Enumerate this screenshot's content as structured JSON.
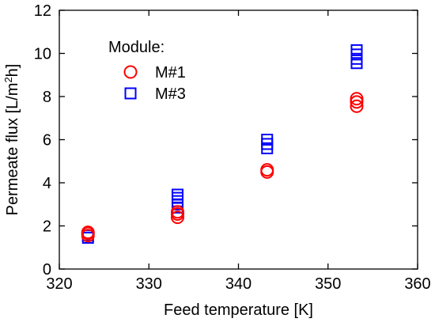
{
  "chart_data": {
    "type": "scatter",
    "xlabel": "Feed temperature [K]",
    "ylabel_main": "Permeate flux [L/m",
    "ylabel_sup": "2",
    "ylabel_end": "h]",
    "xlim": [
      320,
      360
    ],
    "ylim": [
      0,
      12
    ],
    "xticks": [
      320,
      330,
      340,
      350,
      360
    ],
    "yticks": [
      0,
      2,
      4,
      6,
      8,
      10,
      12
    ],
    "grid": false,
    "legend": {
      "title": "Module:",
      "placement": "top-left"
    },
    "series": [
      {
        "name": "M#1",
        "marker": "circle",
        "color": "#ff0000",
        "points": [
          {
            "x": 323.2,
            "y": 1.55
          },
          {
            "x": 323.2,
            "y": 1.65
          },
          {
            "x": 323.2,
            "y": 1.7
          },
          {
            "x": 333.2,
            "y": 2.4
          },
          {
            "x": 333.2,
            "y": 2.55
          },
          {
            "x": 333.2,
            "y": 2.65
          },
          {
            "x": 343.2,
            "y": 4.5
          },
          {
            "x": 343.2,
            "y": 4.6
          },
          {
            "x": 353.2,
            "y": 7.55
          },
          {
            "x": 353.2,
            "y": 7.75
          },
          {
            "x": 353.2,
            "y": 7.9
          }
        ]
      },
      {
        "name": "M#3",
        "marker": "square",
        "color": "#0000ff",
        "points": [
          {
            "x": 323.2,
            "y": 1.45
          },
          {
            "x": 323.2,
            "y": 1.55
          },
          {
            "x": 333.2,
            "y": 2.85
          },
          {
            "x": 333.2,
            "y": 3.0
          },
          {
            "x": 333.2,
            "y": 3.15
          },
          {
            "x": 333.2,
            "y": 3.3
          },
          {
            "x": 333.2,
            "y": 3.45
          },
          {
            "x": 343.2,
            "y": 5.6
          },
          {
            "x": 343.2,
            "y": 5.8
          },
          {
            "x": 343.2,
            "y": 6.0
          },
          {
            "x": 353.2,
            "y": 9.55
          },
          {
            "x": 353.2,
            "y": 9.75
          },
          {
            "x": 353.2,
            "y": 9.95
          },
          {
            "x": 353.2,
            "y": 10.15
          }
        ]
      }
    ]
  }
}
